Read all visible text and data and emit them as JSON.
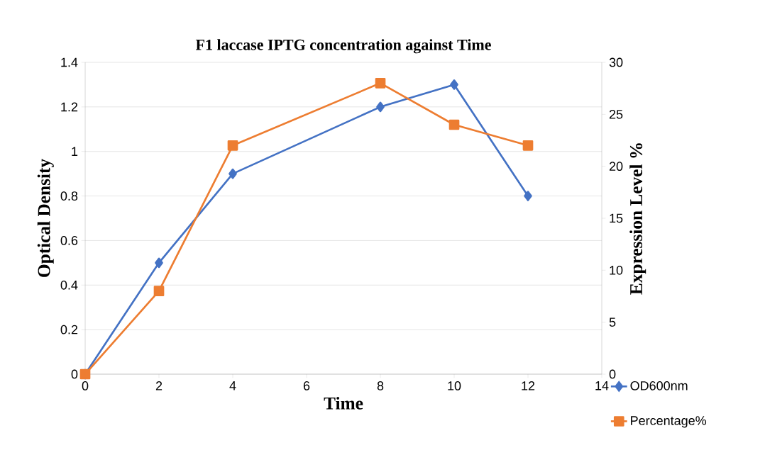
{
  "chart_data": {
    "type": "line",
    "title": "F1 laccase IPTG concentration against Time",
    "xlabel": "Time",
    "ylabel": "Optical Density",
    "y2label": "Expression Level %",
    "x": [
      0,
      2,
      4,
      8,
      10,
      12
    ],
    "series": [
      {
        "name": "OD600nm",
        "color": "#4472c4",
        "marker": "diamond",
        "values": [
          0,
          0.5,
          0.9,
          1.2,
          1.3,
          0.8
        ]
      },
      {
        "name": "Percentage%",
        "color": "#ed7d31",
        "marker": "square",
        "axis": "y2",
        "values": [
          0,
          8,
          22,
          28,
          24,
          22
        ]
      }
    ],
    "xlim": [
      0,
      14
    ],
    "xticks": [
      0,
      2,
      4,
      6,
      8,
      10,
      12,
      14
    ],
    "ylim": [
      0,
      1.4
    ],
    "yticks": [
      0,
      0.2,
      0.4,
      0.6,
      0.8,
      1,
      1.2,
      1.4
    ],
    "y2lim": [
      0,
      30
    ],
    "y2ticks": [
      0,
      5,
      10,
      15,
      20,
      25,
      30
    ],
    "grid": "y",
    "legend": "bottom right",
    "line_style": "solid"
  }
}
